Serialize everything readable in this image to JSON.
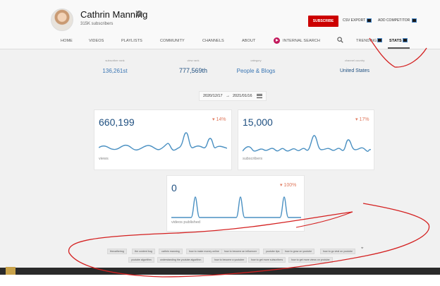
{
  "channel": {
    "name": "Cathrin Manning",
    "subscribers": "315K subscribers"
  },
  "header": {
    "subscribe_label": "SUBSCRIBE",
    "csv_label": "CSV EXPORT",
    "add_competitor_label": "ADD COMPETITOR"
  },
  "nav": {
    "home": "HOME",
    "videos": "VIDEOS",
    "playlists": "PLAYLISTS",
    "community": "COMMUNITY",
    "channels": "CHANNELS",
    "about": "ABOUT",
    "internal_search": "INTERNAL SEARCH",
    "trending": "TRENDING",
    "stats": "STATS"
  },
  "stats_row": [
    {
      "label": "subscriber rank",
      "value": "136,261st"
    },
    {
      "label": "view rank",
      "value": "777,569th"
    },
    {
      "label": "category",
      "value": "People & Blogs"
    },
    {
      "label": "channel country",
      "value": "United States"
    }
  ],
  "date_range": {
    "start": "2020/12/17",
    "arrow": "→",
    "end": "2021/01/16"
  },
  "cards": {
    "views": {
      "value": "660,199",
      "change": "▾ 14%",
      "label": "views"
    },
    "subscribers": {
      "value": "15,000",
      "change": "▾ 17%",
      "label": "subscribers"
    },
    "videos": {
      "value": "0",
      "change": "▾ 100%",
      "label": "videos published"
    }
  },
  "tags": [
    "thecatheriog",
    "the content bug",
    "cathrin manning",
    "how to make money online",
    "how to become an influencer",
    "youtube tips",
    "how to grow on youtube",
    "how to go viral on youtube",
    "youtube algorithm",
    "understanding the youtube algorithm",
    "how to become a youtuber",
    "how to get more subscribers",
    "how to get more views on youtube"
  ],
  "colors": {
    "accent": "#3a76b4",
    "subscribe": "#cc0000",
    "change": "#e07a5f",
    "annotation": "#d42020",
    "sparkline": "#4a90c2"
  }
}
